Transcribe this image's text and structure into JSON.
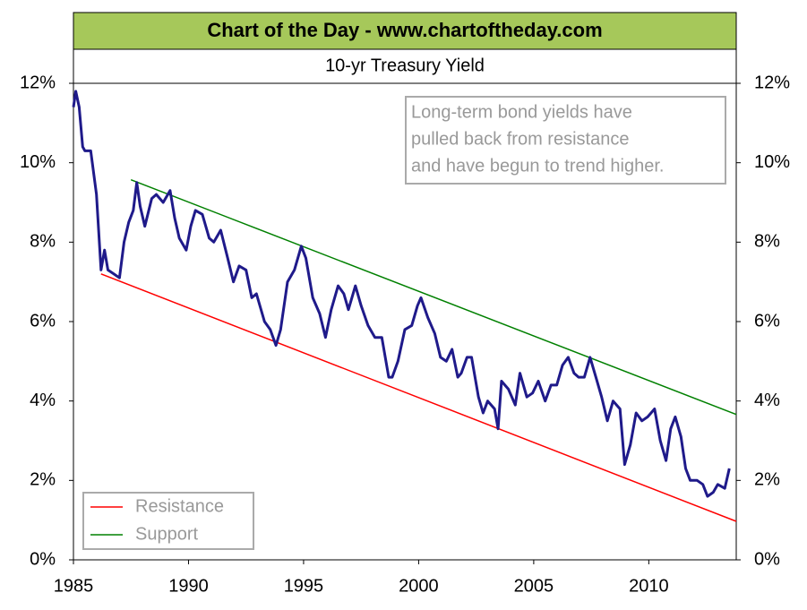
{
  "chart_data": {
    "type": "line",
    "title": "Chart of the Day - www.chartoftheday.com",
    "subtitle": "10-yr Treasury Yield",
    "annotation": [
      "Long-term bond yields have",
      "pulled back from resistance",
      "and have begun to trend higher."
    ],
    "xlim": [
      1985,
      2013.8
    ],
    "xticks": [
      1985,
      1990,
      1995,
      2000,
      2005,
      2010
    ],
    "ylim": [
      0,
      12
    ],
    "yticks": [
      {
        "value": 0,
        "label": "0%"
      },
      {
        "value": 2,
        "label": "2%"
      },
      {
        "value": 4,
        "label": "4%"
      },
      {
        "value": 6,
        "label": "6%"
      },
      {
        "value": 8,
        "label": "8%"
      },
      {
        "value": 10,
        "label": "10%"
      },
      {
        "value": 12,
        "label": "12%"
      }
    ],
    "y2lim": [
      0,
      12
    ],
    "y2ticks": [
      {
        "value": 0,
        "label": "0%"
      },
      {
        "value": 2,
        "label": "2%"
      },
      {
        "value": 4,
        "label": "4%"
      },
      {
        "value": 6,
        "label": "6%"
      },
      {
        "value": 8,
        "label": "8%"
      },
      {
        "value": 10,
        "label": "10%"
      },
      {
        "value": 12,
        "label": "12%"
      }
    ],
    "legend": "lower left",
    "series": [
      {
        "color": "#1f1a8a",
        "x": [
          1985.0,
          1985.1,
          1985.25,
          1985.4,
          1985.5,
          1985.75,
          1986.0,
          1986.2,
          1986.35,
          1986.5,
          1986.75,
          1987.0,
          1987.2,
          1987.4,
          1987.6,
          1987.75,
          1987.9,
          1988.1,
          1988.4,
          1988.6,
          1988.9,
          1989.2,
          1989.4,
          1989.6,
          1989.9,
          1990.1,
          1990.3,
          1990.6,
          1990.9,
          1991.1,
          1991.4,
          1991.7,
          1991.95,
          1992.2,
          1992.5,
          1992.75,
          1992.95,
          1993.3,
          1993.55,
          1993.8,
          1994.0,
          1994.3,
          1994.6,
          1994.9,
          1995.1,
          1995.4,
          1995.7,
          1995.95,
          1996.2,
          1996.5,
          1996.75,
          1996.95,
          1997.25,
          1997.5,
          1997.8,
          1998.1,
          1998.4,
          1998.7,
          1998.85,
          1999.1,
          1999.4,
          1999.7,
          1999.95,
          2000.1,
          2000.4,
          2000.7,
          2000.95,
          2001.2,
          2001.45,
          2001.7,
          2001.85,
          2002.1,
          2002.3,
          2002.6,
          2002.8,
          2003.0,
          2003.3,
          2003.45,
          2003.6,
          2003.9,
          2004.2,
          2004.4,
          2004.7,
          2004.95,
          2005.2,
          2005.5,
          2005.75,
          2006.0,
          2006.25,
          2006.5,
          2006.75,
          2006.95,
          2007.2,
          2007.45,
          2007.7,
          2007.95,
          2008.2,
          2008.45,
          2008.75,
          2008.95,
          2009.2,
          2009.45,
          2009.7,
          2009.95,
          2010.25,
          2010.5,
          2010.75,
          2010.95,
          2011.15,
          2011.4,
          2011.6,
          2011.8,
          2012.1,
          2012.35,
          2012.55,
          2012.8,
          2013.0,
          2013.3,
          2013.5
        ],
        "values": [
          11.4,
          11.8,
          11.4,
          10.4,
          10.3,
          10.3,
          9.2,
          7.3,
          7.8,
          7.3,
          7.2,
          7.1,
          8.0,
          8.5,
          8.8,
          9.5,
          8.9,
          8.4,
          9.1,
          9.2,
          9.0,
          9.3,
          8.6,
          8.1,
          7.8,
          8.4,
          8.8,
          8.7,
          8.1,
          8.0,
          8.3,
          7.6,
          7.0,
          7.4,
          7.3,
          6.6,
          6.7,
          6.0,
          5.8,
          5.4,
          5.8,
          7.0,
          7.3,
          7.9,
          7.6,
          6.6,
          6.2,
          5.6,
          6.3,
          6.9,
          6.7,
          6.3,
          6.9,
          6.4,
          5.9,
          5.6,
          5.6,
          4.6,
          4.6,
          5.0,
          5.8,
          5.9,
          6.4,
          6.6,
          6.1,
          5.7,
          5.1,
          5.0,
          5.3,
          4.6,
          4.7,
          5.1,
          5.1,
          4.1,
          3.7,
          4.0,
          3.8,
          3.3,
          4.5,
          4.3,
          3.9,
          4.7,
          4.1,
          4.2,
          4.5,
          4.0,
          4.4,
          4.4,
          4.9,
          5.1,
          4.7,
          4.6,
          4.6,
          5.1,
          4.6,
          4.1,
          3.5,
          4.0,
          3.8,
          2.4,
          2.9,
          3.7,
          3.5,
          3.6,
          3.8,
          3.0,
          2.5,
          3.3,
          3.6,
          3.1,
          2.3,
          2.0,
          2.0,
          1.9,
          1.6,
          1.7,
          1.9,
          1.8,
          2.3
        ]
      },
      {
        "name": "Resistance",
        "color": "#ff0000",
        "x": [
          1986.2,
          2013.8
        ],
        "values": [
          7.2,
          0.97
        ]
      },
      {
        "name": "Support",
        "color": "#008000",
        "x": [
          1987.5,
          2013.8
        ],
        "values": [
          9.57,
          3.66
        ]
      }
    ]
  }
}
